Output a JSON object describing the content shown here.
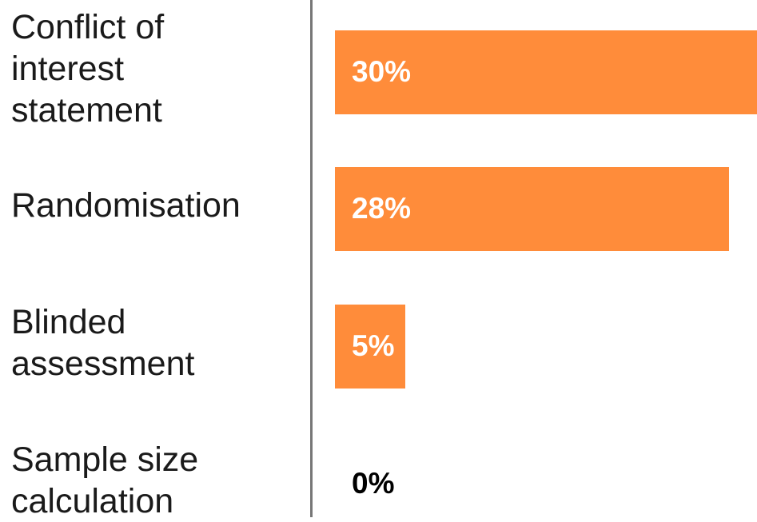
{
  "chart_data": {
    "type": "bar",
    "orientation": "horizontal",
    "categories": [
      "Conflict of interest statement",
      "Randomisation",
      "Blinded assessment",
      "Sample size calculation"
    ],
    "category_lines": [
      [
        "Conflict of",
        "interest",
        "statement"
      ],
      [
        "Randomisation"
      ],
      [
        "Blinded",
        "assessment"
      ],
      [
        "Sample size",
        "calculation"
      ]
    ],
    "values": [
      30,
      28,
      5,
      0
    ],
    "value_labels": [
      "30%",
      "28%",
      "5%",
      "0%"
    ],
    "xlim": [
      0,
      30
    ],
    "grid": false,
    "legend": "none"
  },
  "colors": {
    "bar": "#ff8c3a",
    "label_on_bar": "#ffffff",
    "label_off_bar": "#000000",
    "axis": "#777777"
  }
}
